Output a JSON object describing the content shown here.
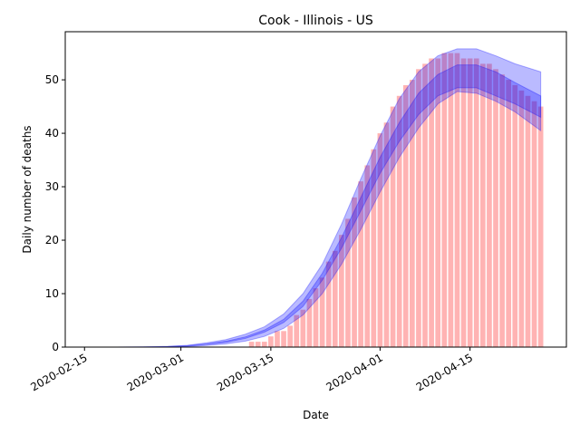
{
  "chart_data": {
    "type": "bar",
    "title": "Cook - Illinois - US",
    "xlabel": "Date",
    "ylabel": "Daily number of deaths",
    "x_ticks": [
      "2020-02-15",
      "2020-03-01",
      "2020-03-15",
      "2020-04-01",
      "2020-04-15"
    ],
    "y_ticks": [
      0,
      10,
      20,
      30,
      40,
      50
    ],
    "xlim": [
      "2020-02-12",
      "2020-04-30"
    ],
    "ylim": [
      0,
      59
    ],
    "grid": false,
    "bar_color": "#ffb3b3",
    "band_color": "#0000ff",
    "series": [
      {
        "type": "bar",
        "x": [
          "2020-03-12",
          "2020-03-13",
          "2020-03-14",
          "2020-03-15",
          "2020-03-16",
          "2020-03-17",
          "2020-03-18",
          "2020-03-19",
          "2020-03-20",
          "2020-03-21",
          "2020-03-22",
          "2020-03-23",
          "2020-03-24",
          "2020-03-25",
          "2020-03-26",
          "2020-03-27",
          "2020-03-28",
          "2020-03-29",
          "2020-03-30",
          "2020-03-31",
          "2020-04-01",
          "2020-04-02",
          "2020-04-03",
          "2020-04-04",
          "2020-04-05",
          "2020-04-06",
          "2020-04-07",
          "2020-04-08",
          "2020-04-09",
          "2020-04-10",
          "2020-04-11",
          "2020-04-12",
          "2020-04-13",
          "2020-04-14",
          "2020-04-15",
          "2020-04-16",
          "2020-04-17",
          "2020-04-18",
          "2020-04-19",
          "2020-04-20",
          "2020-04-21",
          "2020-04-22",
          "2020-04-23",
          "2020-04-24",
          "2020-04-25",
          "2020-04-26"
        ],
        "values": [
          1,
          1,
          1,
          2,
          3,
          3,
          4,
          6,
          7,
          9,
          11,
          13,
          16,
          18,
          21,
          24,
          28,
          31,
          34,
          37,
          40,
          42,
          45,
          47,
          49,
          50,
          52,
          53,
          54,
          54,
          55,
          55,
          55,
          54,
          54,
          54,
          53,
          53,
          52,
          51,
          50,
          49,
          48,
          47,
          46,
          45
        ]
      },
      {
        "type": "band",
        "x": [
          "2020-02-20",
          "2020-02-24",
          "2020-02-28",
          "2020-03-02",
          "2020-03-05",
          "2020-03-08",
          "2020-03-11",
          "2020-03-14",
          "2020-03-17",
          "2020-03-20",
          "2020-03-23",
          "2020-03-26",
          "2020-03-29",
          "2020-04-01",
          "2020-04-04",
          "2020-04-07",
          "2020-04-10",
          "2020-04-13",
          "2020-04-16",
          "2020-04-19",
          "2020-04-22",
          "2020-04-26"
        ],
        "lower": [
          0,
          0,
          0.05,
          0.1,
          0.3,
          0.6,
          1.1,
          2.0,
          3.5,
          6.0,
          10,
          15.5,
          22,
          29,
          35.5,
          41,
          45.5,
          47.8,
          47.5,
          46,
          44,
          40.5
        ],
        "upper": [
          0,
          0.05,
          0.15,
          0.35,
          0.8,
          1.4,
          2.4,
          3.8,
          6.2,
          10,
          15.5,
          23,
          31.5,
          39.5,
          46.5,
          51.5,
          54.5,
          55.8,
          55.8,
          54.5,
          53,
          51.5
        ]
      },
      {
        "type": "band",
        "x": [
          "2020-02-20",
          "2020-02-24",
          "2020-02-28",
          "2020-03-02",
          "2020-03-05",
          "2020-03-08",
          "2020-03-11",
          "2020-03-14",
          "2020-03-17",
          "2020-03-20",
          "2020-03-23",
          "2020-03-26",
          "2020-03-29",
          "2020-04-01",
          "2020-04-04",
          "2020-04-07",
          "2020-04-10",
          "2020-04-13",
          "2020-04-16",
          "2020-04-19",
          "2020-04-22",
          "2020-04-26"
        ],
        "lower": [
          0,
          0.02,
          0.08,
          0.2,
          0.5,
          0.9,
          1.6,
          2.8,
          4.6,
          7.6,
          12.5,
          18.5,
          25.5,
          32.5,
          38.5,
          43.5,
          47,
          48.5,
          48.5,
          47,
          45.5,
          43
        ],
        "upper": [
          0,
          0.03,
          0.1,
          0.25,
          0.6,
          1.1,
          1.9,
          3.2,
          5.2,
          8.6,
          13.8,
          20.5,
          28,
          35.5,
          42,
          47.5,
          51,
          52.8,
          52.8,
          51.5,
          49.5,
          47
        ]
      }
    ]
  }
}
